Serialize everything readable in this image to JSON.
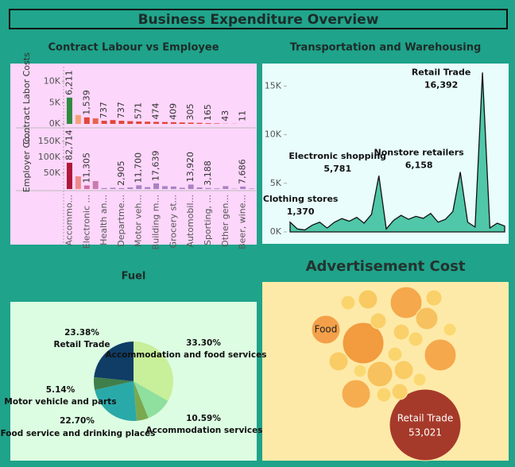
{
  "title": "Business Expenditure Overview",
  "chart_data": [
    {
      "type": "bar",
      "title": "Contract Labour vs Employee",
      "categories": [
        "Accommo...",
        null,
        "Electronic ...",
        null,
        "Health an...",
        null,
        "Departme...",
        null,
        "Motor veh...",
        null,
        "Building m...",
        null,
        "Grocery st...",
        null,
        "Automobil...",
        null,
        "Sporting, ...",
        null,
        "Other gen...",
        null,
        "Beer, wine...",
        null
      ],
      "series": [
        {
          "name": "Contract Labor Costs",
          "values": [
            6211,
            2100,
            1539,
            1300,
            737,
            900,
            737,
            650,
            571,
            520,
            474,
            440,
            409,
            350,
            305,
            250,
            165,
            120,
            43,
            30,
            11,
            8
          ],
          "value_labels": [
            "6,211",
            null,
            "1,539",
            null,
            "737",
            null,
            "737",
            null,
            "571",
            null,
            "474",
            null,
            "409",
            null,
            "305",
            null,
            "165",
            null,
            "43",
            null,
            "11",
            null
          ],
          "colors": [
            "#2e8b3e",
            "#f4a27a",
            "#e0473a",
            "#e8614d",
            "#e0473a",
            "#e0473a",
            "#e0473a",
            "#e0473a",
            "#e0473a",
            "#e0473a",
            "#e0473a",
            "#e0473a",
            "#e0473a",
            "#e0473a",
            "#e0473a",
            "#e0473a",
            "#e0473a",
            "#e0473a",
            "#e0473a",
            "#e0473a",
            "#e0473a",
            "#e0473a"
          ],
          "ylim": [
            0,
            12000
          ],
          "yticks": [
            {
              "value": 0,
              "label": "0K"
            },
            {
              "value": 5000,
              "label": "5K"
            },
            {
              "value": 10000,
              "label": "10K"
            }
          ]
        },
        {
          "name": "Employer Co...",
          "values": [
            82714,
            40000,
            11305,
            25000,
            3000,
            4000,
            2905,
            5000,
            11700,
            6000,
            17639,
            9000,
            8000,
            4000,
            13920,
            5000,
            3188,
            2000,
            9000,
            1000,
            7686,
            1500
          ],
          "value_labels": [
            "82,714",
            null,
            "11,305",
            null,
            null,
            null,
            "2,905",
            null,
            "11,700",
            null,
            "17,639",
            null,
            null,
            null,
            "13,920",
            null,
            "3,188",
            null,
            null,
            null,
            "7,686",
            null
          ],
          "colors": [
            "#b0173a",
            "#ee8a8a",
            "#d46aa0",
            "#c97bb0",
            "#a883c4",
            "#a883c4",
            "#a883c4",
            "#a883c4",
            "#a883c4",
            "#a883c4",
            "#a883c4",
            "#a883c4",
            "#a883c4",
            "#a883c4",
            "#a883c4",
            "#a883c4",
            "#a883c4",
            "#a883c4",
            "#a883c4",
            "#a883c4",
            "#a883c4",
            "#a883c4"
          ],
          "ylim": [
            0,
            180000
          ],
          "yticks": [
            {
              "value": 50000,
              "label": "50K"
            },
            {
              "value": 100000,
              "label": "100K"
            },
            {
              "value": 150000,
              "label": "150K"
            }
          ]
        }
      ]
    },
    {
      "type": "area",
      "title": "Transportation and Warehousing",
      "color": "#4fc7a8",
      "values": [
        1000,
        300,
        200,
        700,
        1000,
        400,
        1000,
        1370,
        1100,
        1500,
        900,
        1800,
        5781,
        300,
        1200,
        1700,
        1300,
        1600,
        1400,
        1900,
        1000,
        1300,
        2100,
        6158,
        1000,
        500,
        16392,
        400,
        900,
        600
      ],
      "point_names": [
        null,
        null,
        null,
        null,
        null,
        null,
        null,
        "Clothing stores",
        null,
        null,
        null,
        null,
        "Electronic shopping",
        null,
        null,
        null,
        null,
        null,
        null,
        null,
        null,
        null,
        null,
        "Nonstore retailers",
        null,
        null,
        "Retail Trade",
        null,
        null,
        null
      ],
      "value_labels": [
        null,
        null,
        null,
        null,
        null,
        null,
        null,
        "1,370",
        null,
        null,
        null,
        null,
        "5,781",
        null,
        null,
        null,
        null,
        null,
        null,
        null,
        null,
        null,
        null,
        "6,158",
        null,
        null,
        "16,392",
        null,
        null,
        null
      ],
      "ylim": [
        0,
        16500
      ],
      "yticks": [
        {
          "value": 0,
          "label": "0K"
        },
        {
          "value": 5000,
          "label": "5K"
        },
        {
          "value": 10000,
          "label": "10K"
        },
        {
          "value": 15000,
          "label": "15K"
        }
      ]
    },
    {
      "type": "pie",
      "title": "Fuel",
      "categories": [
        "Accommodation and food services",
        "Accommodation services",
        null,
        "Food service and drinking places",
        "Motor vehicle and parts",
        "Retail Trade"
      ],
      "values": [
        33.3,
        10.59,
        4.89,
        22.7,
        5.14,
        23.38
      ],
      "value_labels": [
        "33.30%",
        "10.59%",
        null,
        "22.70%",
        "5.14%",
        "23.38%"
      ],
      "colors": [
        "#c8ef9a",
        "#8fdf9e",
        "#7aa84f",
        "#2aa9a9",
        "#3f7f4a",
        "#0f3d66"
      ]
    },
    {
      "type": "bubble",
      "title": "Advertisement Cost",
      "categories": [
        "Retail Trade",
        "Food",
        null,
        null,
        null,
        null,
        null,
        null,
        null,
        null,
        null,
        null,
        null,
        null,
        null,
        null,
        null,
        null,
        null,
        null,
        null,
        null
      ],
      "values": [
        53021,
        8483,
        17700,
        10472,
        10472,
        8483,
        6702,
        5131,
        3770,
        3770,
        2618,
        2618,
        3770,
        2121,
        2618,
        2121,
        1676,
        2121,
        1676,
        2618,
        2121,
        1676
      ],
      "value_labels": [
        "53,021",
        null,
        null,
        null,
        null,
        null,
        null,
        null,
        null,
        null,
        null,
        null,
        null,
        null,
        null,
        null,
        null,
        null,
        null,
        null,
        null,
        null
      ],
      "colors": [
        "#a63a2a",
        "#f4a04a",
        "#f29b3f",
        "#f5a84c",
        "#f5a84c",
        "#f5ad50",
        "#f7c15d",
        "#f8c15f",
        "#f9c962",
        "#f9cc66",
        "#f9d06a",
        "#f9d06a",
        "#f9cc66",
        "#fad56e",
        "#f9d06a",
        "#fad56e",
        "#fbd972",
        "#fad56e",
        "#fbd972",
        "#f9d06a",
        "#fad56e",
        "#fbd972"
      ]
    }
  ]
}
